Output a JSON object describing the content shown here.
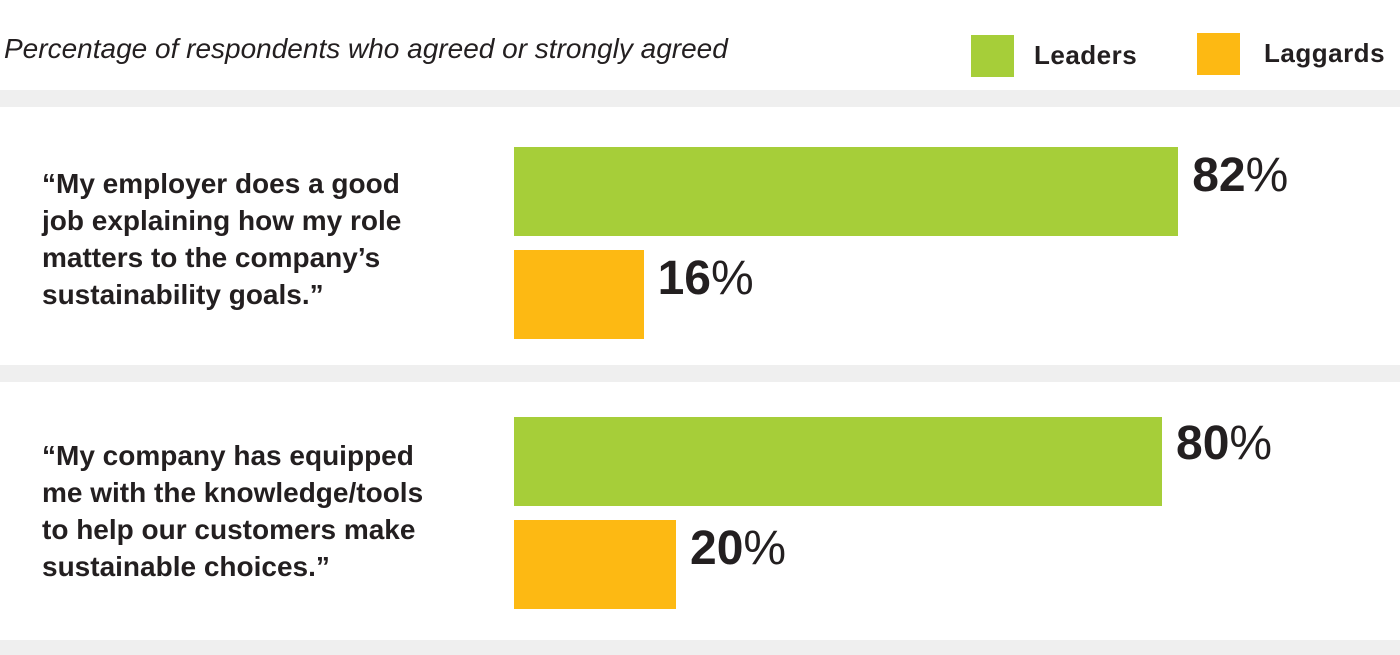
{
  "subtitle": "Percentage of respondents who agreed or strongly agreed",
  "legend": [
    {
      "label": "Leaders",
      "color": "#a6ce39"
    },
    {
      "label": "Laggards",
      "color": "#fdb913"
    }
  ],
  "chart_data": {
    "type": "bar",
    "orientation": "horizontal",
    "subtitle": "Percentage of respondents who agreed or strongly agreed",
    "categories": [
      "“My employer does a good job explaining how my role matters to the company’s sustainability goals.”",
      "“My company has equipped me with the knowledge/tools to help our customers make sustainable choices.”"
    ],
    "series": [
      {
        "name": "Leaders",
        "color": "#a6ce39",
        "values": [
          82,
          80
        ]
      },
      {
        "name": "Laggards",
        "color": "#fdb913",
        "values": [
          16,
          20
        ]
      }
    ],
    "value_suffix": "%",
    "xlim": [
      0,
      100
    ],
    "grid": false,
    "legend_position": "top-right"
  },
  "questions": [
    {
      "text": "“My employer does a good\njob explaining how my role\nmatters to the company’s\nsustainability goals.”",
      "leaders_value": "82",
      "laggards_value": "16"
    },
    {
      "text": "“My company has equipped\nme with the knowledge/tools\nto help our customers make\nsustainable choices.”",
      "leaders_value": "80",
      "laggards_value": "20"
    }
  ],
  "percent_symbol": "%"
}
